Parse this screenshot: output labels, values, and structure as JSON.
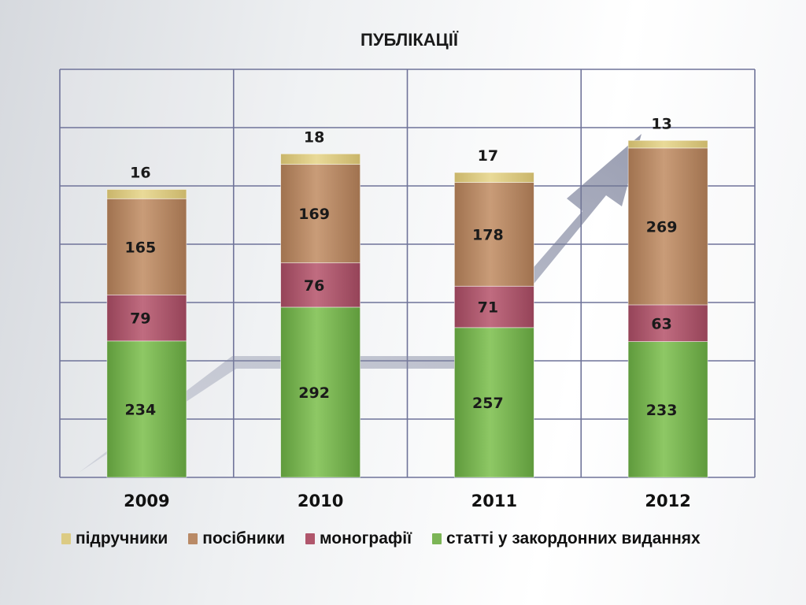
{
  "chart_data": {
    "type": "bar",
    "stacked": true,
    "title": "ПУБЛІКАЦІЇ",
    "categories": [
      "2009",
      "2010",
      "2011",
      "2012"
    ],
    "series": [
      {
        "name": "статті у закордонних виданнях",
        "color": "#7cb556",
        "values": [
          234,
          292,
          257,
          233
        ]
      },
      {
        "name": "монографії",
        "color": "#b0566c",
        "values": [
          79,
          76,
          71,
          63
        ]
      },
      {
        "name": "посібники",
        "color": "#b98a66",
        "values": [
          165,
          169,
          178,
          269
        ]
      },
      {
        "name": "підручники",
        "color": "#dccb84",
        "values": [
          16,
          18,
          17,
          13
        ]
      }
    ],
    "legend_order": [
      "підручники",
      "посібники",
      "монографії",
      "статті у закордонних виданнях"
    ],
    "ylim": [
      0,
      700
    ],
    "grid": true,
    "legend_position": "bottom",
    "trend_arrow": true
  }
}
